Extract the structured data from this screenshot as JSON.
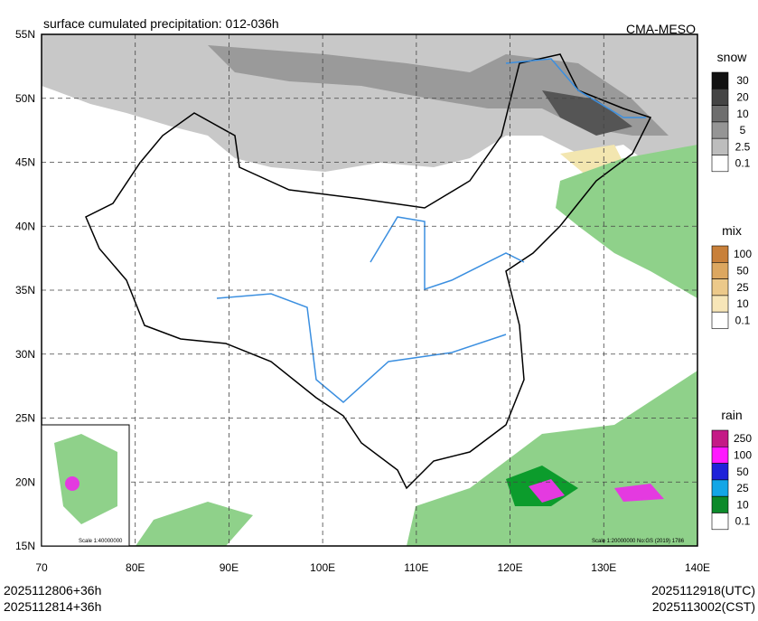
{
  "header": {
    "title": "surface cumulated precipitation: 012-036h",
    "source": "CMA-MESO"
  },
  "map": {
    "lat_labels": [
      "55N",
      "50N",
      "45N",
      "40N",
      "35N",
      "30N",
      "25N",
      "20N",
      "15N"
    ],
    "lon_labels": [
      "70",
      "80E",
      "90E",
      "100E",
      "110E",
      "120E",
      "130E",
      "140E"
    ],
    "scale_note": "Scale 1:20000000 No:GS (2019) 1786",
    "inset_scale_note": "Scale 1:40000000"
  },
  "legends": [
    {
      "title": "snow",
      "labels": [
        "30",
        "20",
        "10",
        "5",
        "2.5",
        "0.1"
      ]
    },
    {
      "title": "mix",
      "labels": [
        "100",
        "50",
        "25",
        "10",
        "0.1"
      ]
    },
    {
      "title": "rain",
      "labels": [
        "250",
        "100",
        "50",
        "25",
        "10",
        "0.1"
      ]
    }
  ],
  "footer": {
    "init_utc": "2025112806+36h",
    "init_cst": "2025112814+36h",
    "valid_utc": "2025112918(UTC)",
    "valid_cst": "2025113002(CST)"
  }
}
